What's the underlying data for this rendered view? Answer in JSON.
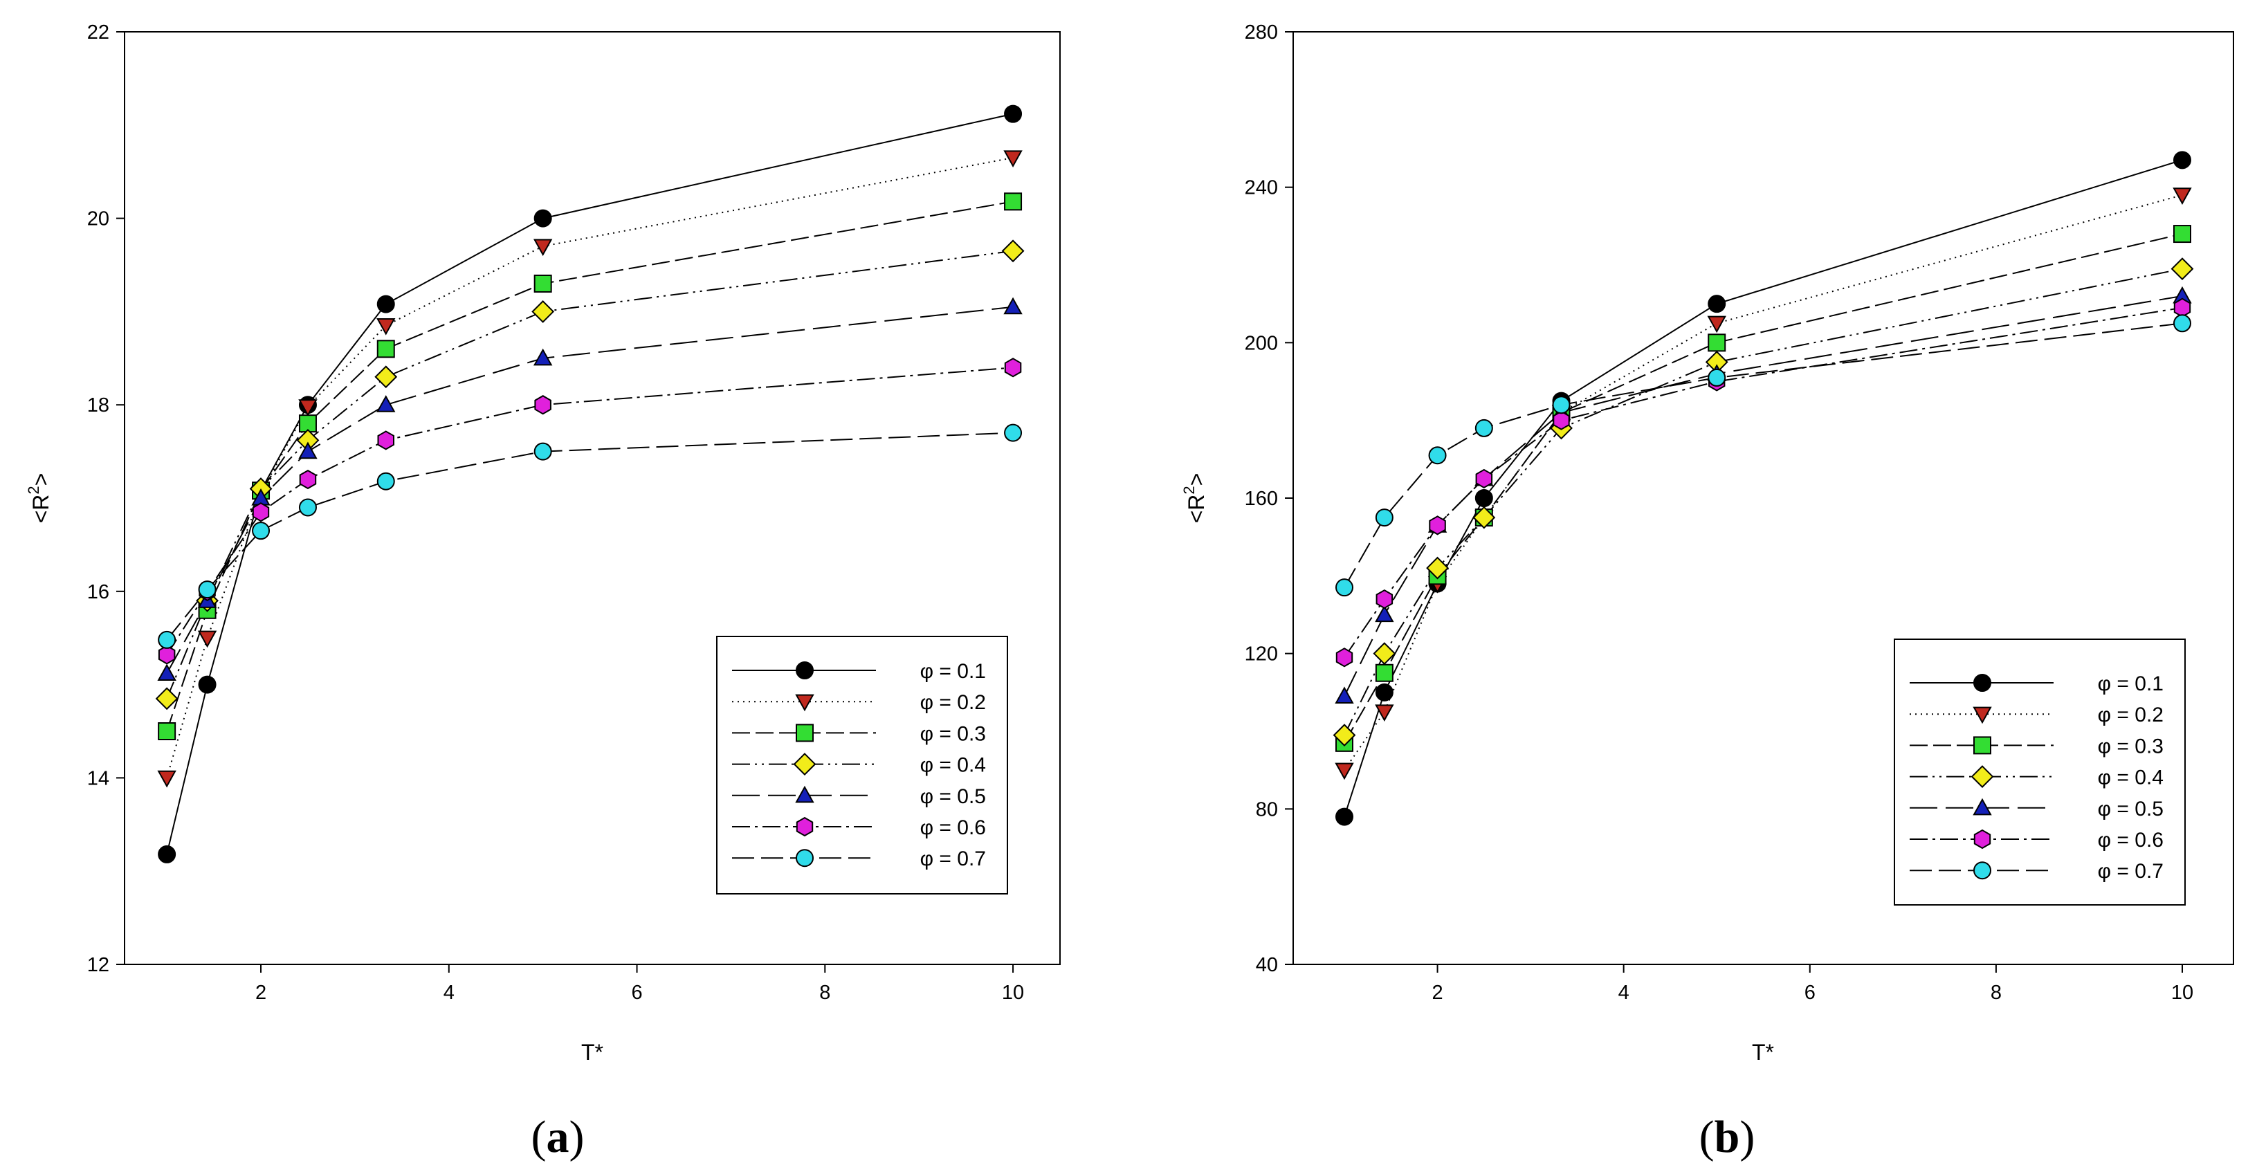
{
  "chart_data": [
    {
      "type": "line",
      "panel_label_prefix": "(",
      "panel_label_letter": "a",
      "panel_label_suffix": ")",
      "xlabel": "T*",
      "ylabel_prefix": "<R",
      "ylabel_sup": "2",
      "ylabel_suffix": ">",
      "xlim": [
        0.55,
        10.5
      ],
      "ylim": [
        12,
        22
      ],
      "x_ticks": [
        2,
        4,
        6,
        8,
        10
      ],
      "y_ticks": [
        12,
        14,
        16,
        18,
        20,
        22
      ],
      "x_tick_labels": [
        "2",
        "4",
        "6",
        "8",
        "10"
      ],
      "y_tick_labels": [
        "12",
        "14",
        "16",
        "18",
        "20",
        "22"
      ],
      "x": [
        1.0,
        1.43,
        2.0,
        2.5,
        3.33,
        5.0,
        10.0
      ],
      "legend_position": "lower-right",
      "series": [
        {
          "name": "φ = 0.1",
          "values": [
            13.18,
            15.0,
            17.08,
            18.0,
            19.08,
            20.0,
            21.12
          ]
        },
        {
          "name": "φ = 0.2",
          "values": [
            14.0,
            15.5,
            17.05,
            17.98,
            18.85,
            19.7,
            20.65
          ]
        },
        {
          "name": "φ = 0.3",
          "values": [
            14.5,
            15.8,
            17.08,
            17.8,
            18.6,
            19.3,
            20.18
          ]
        },
        {
          "name": "φ = 0.4",
          "values": [
            14.85,
            15.9,
            17.1,
            17.62,
            18.3,
            19.0,
            19.65
          ]
        },
        {
          "name": "φ = 0.5",
          "values": [
            15.12,
            15.9,
            17.0,
            17.5,
            18.0,
            18.5,
            19.05
          ]
        },
        {
          "name": "φ = 0.6",
          "values": [
            15.32,
            16.0,
            16.85,
            17.2,
            17.62,
            18.0,
            18.4
          ]
        },
        {
          "name": "φ = 0.7",
          "values": [
            15.48,
            16.02,
            16.65,
            16.9,
            17.18,
            17.5,
            17.7
          ]
        }
      ]
    },
    {
      "type": "line",
      "panel_label_prefix": "(",
      "panel_label_letter": "b",
      "panel_label_suffix": ")",
      "xlabel": "T*",
      "ylabel_prefix": "<R",
      "ylabel_sup": "2",
      "ylabel_suffix": ">",
      "xlim": [
        0.45,
        10.55
      ],
      "ylim": [
        40,
        280
      ],
      "x_ticks": [
        2,
        4,
        6,
        8,
        10
      ],
      "y_ticks": [
        40,
        80,
        120,
        160,
        200,
        240,
        280
      ],
      "x_tick_labels": [
        "2",
        "4",
        "6",
        "8",
        "10"
      ],
      "y_tick_labels": [
        "40",
        "80",
        "120",
        "160",
        "200",
        "240",
        "280"
      ],
      "x": [
        1.0,
        1.43,
        2.0,
        2.5,
        3.33,
        5.0,
        10.0
      ],
      "legend_position": "lower-right",
      "series": [
        {
          "name": "φ = 0.1",
          "values": [
            78,
            110,
            138,
            160,
            185,
            210,
            247
          ]
        },
        {
          "name": "φ = 0.2",
          "values": [
            90,
            105,
            138,
            155,
            182,
            205,
            238
          ]
        },
        {
          "name": "φ = 0.3",
          "values": [
            97,
            115,
            140,
            155,
            182,
            200,
            228
          ]
        },
        {
          "name": "φ = 0.4",
          "values": [
            99,
            120,
            142,
            155,
            178,
            195,
            219
          ]
        },
        {
          "name": "φ = 0.5",
          "values": [
            109,
            130,
            153,
            165,
            182,
            192,
            212
          ]
        },
        {
          "name": "φ = 0.6",
          "values": [
            119,
            134,
            153,
            165,
            180,
            190,
            209
          ]
        },
        {
          "name": "φ = 0.7",
          "values": [
            137,
            155,
            171,
            178,
            184,
            191,
            205
          ]
        }
      ]
    }
  ],
  "series_styles": [
    {
      "marker": "circle",
      "color": "#000000",
      "dash": "none"
    },
    {
      "marker": "triangle-down",
      "color": "#c0281e",
      "dash": "2 6"
    },
    {
      "marker": "square",
      "color": "#33dd33",
      "dash": "26 8"
    },
    {
      "marker": "diamond",
      "color": "#f2ec1a",
      "dash": "26 7 3 7 3 7"
    },
    {
      "marker": "triangle-up",
      "color": "#1420b8",
      "dash": "40 12"
    },
    {
      "marker": "hexagon",
      "color": "#e020dc",
      "dash": "26 7 4 7"
    },
    {
      "marker": "circle",
      "color": "#30dcea",
      "dash": "32 10"
    }
  ]
}
